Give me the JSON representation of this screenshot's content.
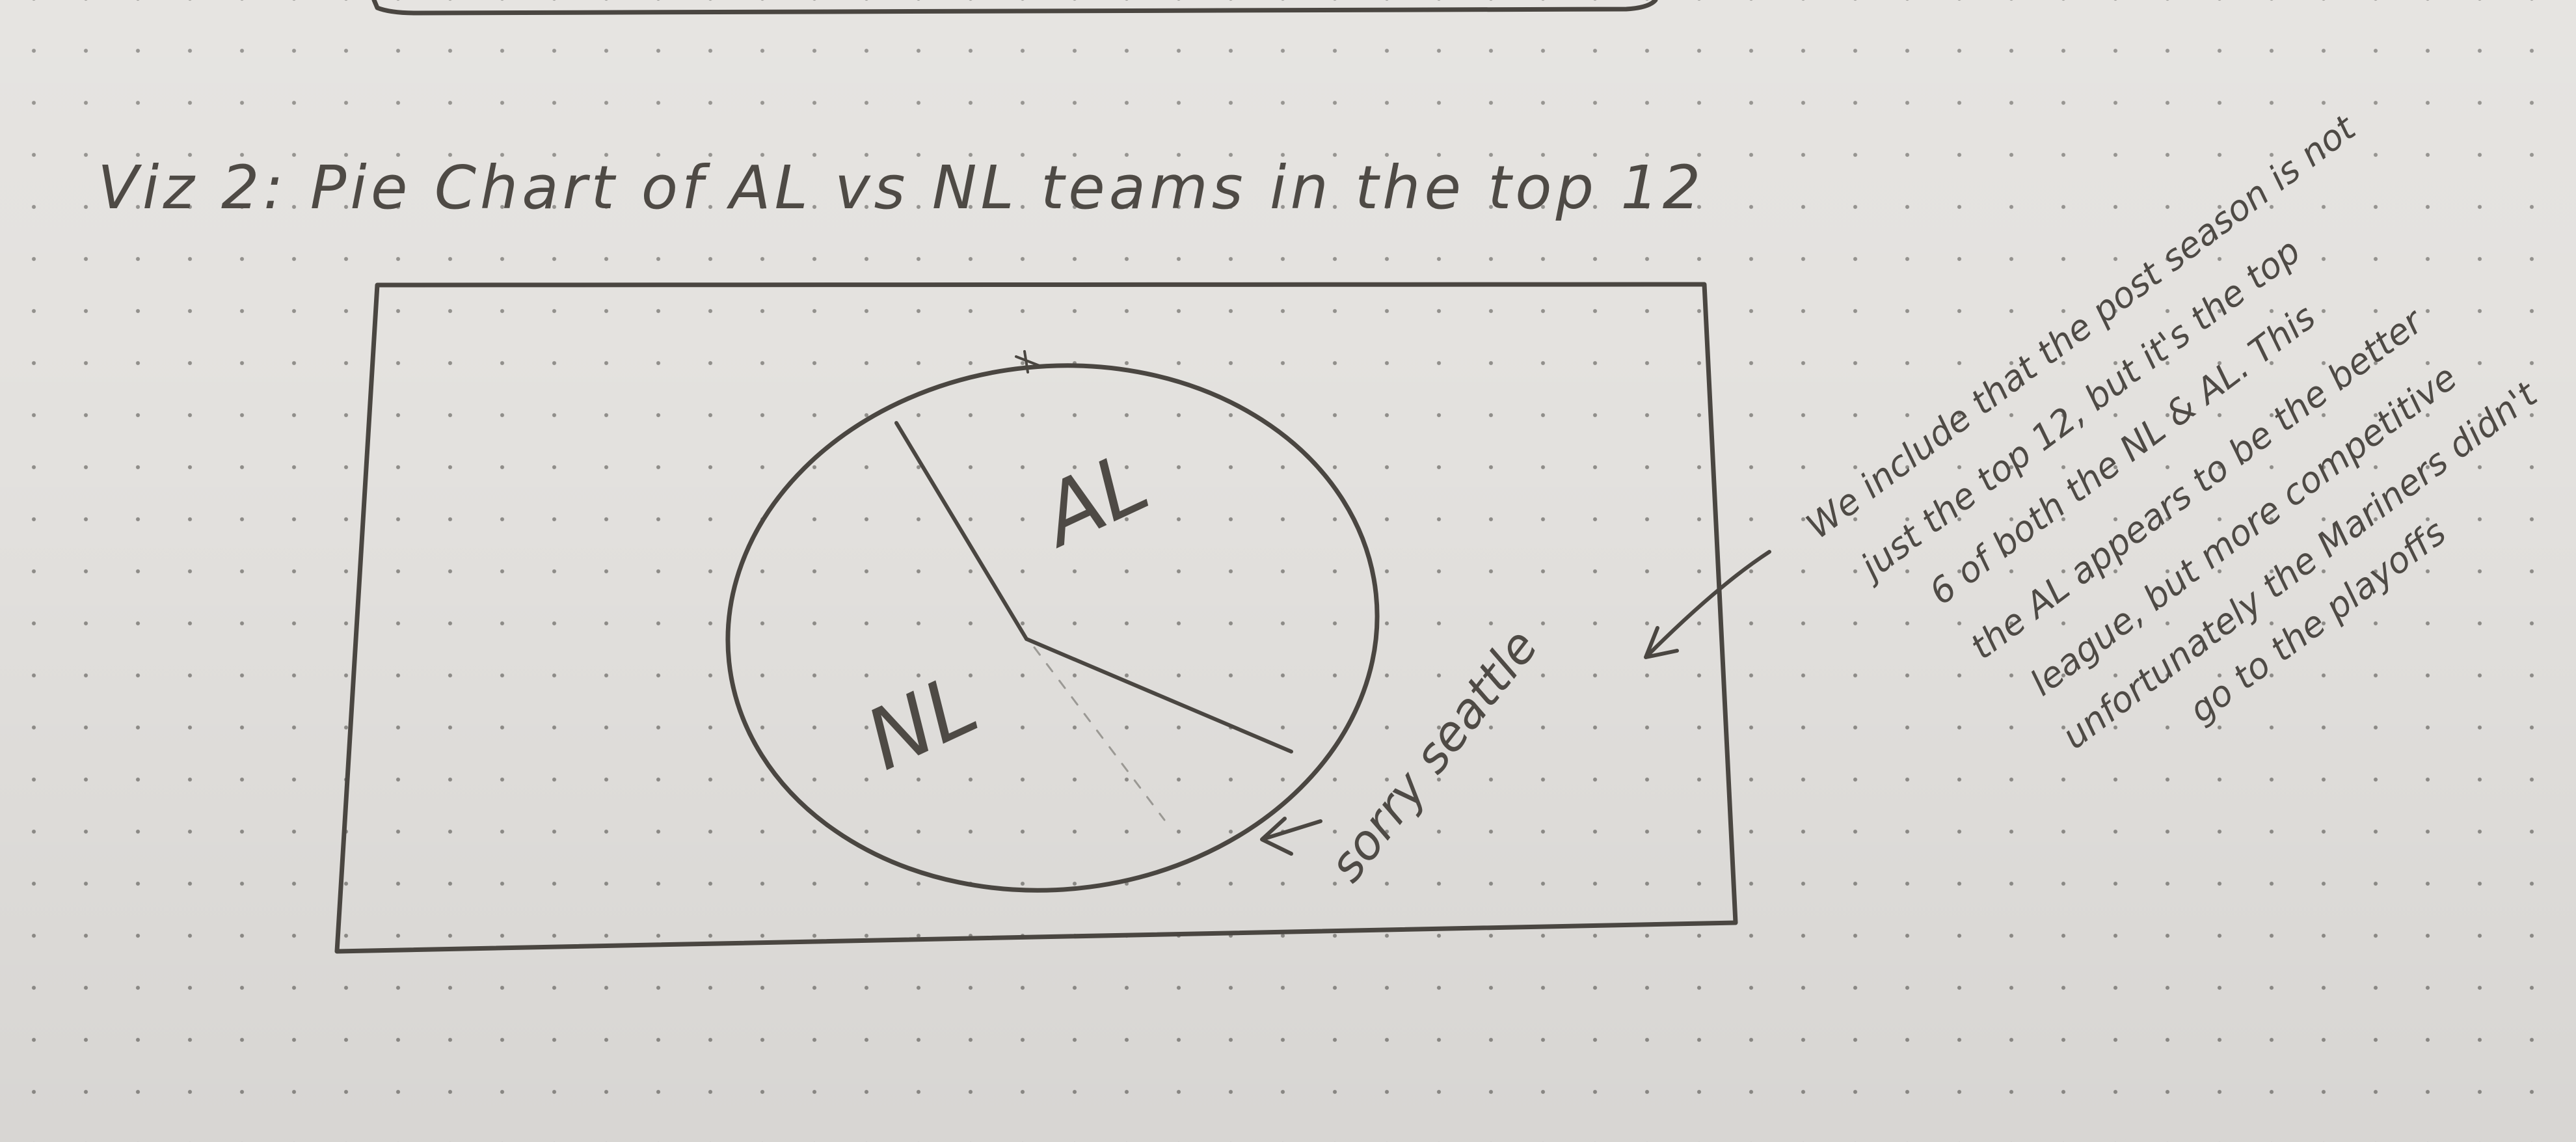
{
  "title": "Viz 2: Pie Chart of AL vs NL teams in the top 12",
  "chart_data": {
    "type": "pie",
    "title": "Viz 2: Pie Chart of AL vs NL teams in the top 12",
    "categories": [
      "AL",
      "NL"
    ],
    "values": [
      6,
      6
    ],
    "annotations": [
      "sorry seattle"
    ]
  },
  "sticky_note_lines": [
    "We include that the post season is not",
    "just the top 12, but it's the top",
    "6 of both the NL & AL. This",
    "the AL appears to be the better",
    "league, but more competitive",
    "unfortunately the Mariners didn't",
    "go to the playoffs"
  ],
  "colors": {
    "paper": "#e3e1de",
    "dot": "#8f8d89",
    "ink": "#4a4641"
  }
}
